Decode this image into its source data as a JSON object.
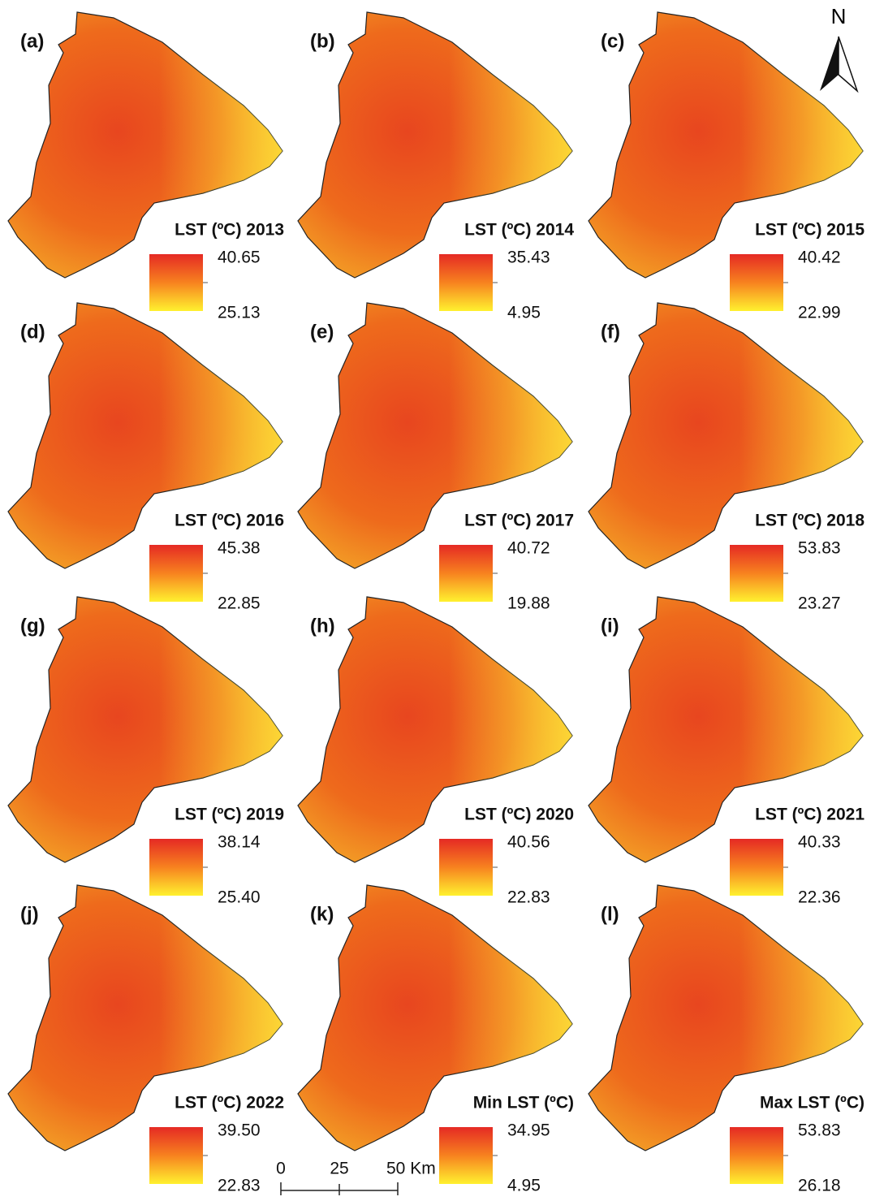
{
  "north": "N",
  "scale_bar": {
    "labels": [
      "0",
      "25",
      "50 Km"
    ]
  },
  "panels": [
    {
      "label": "(a)",
      "legend_title": "LST (ºC) 2013",
      "max": "40.65",
      "min": "25.13"
    },
    {
      "label": "(b)",
      "legend_title": "LST (ºC) 2014",
      "max": "35.43",
      "min": "4.95"
    },
    {
      "label": "(c)",
      "legend_title": "LST (ºC) 2015",
      "max": "40.42",
      "min": "22.99"
    },
    {
      "label": "(d)",
      "legend_title": "LST (ºC) 2016",
      "max": "45.38",
      "min": "22.85"
    },
    {
      "label": "(e)",
      "legend_title": "LST (ºC) 2017",
      "max": "40.72",
      "min": "19.88"
    },
    {
      "label": "(f)",
      "legend_title": "LST (ºC) 2018",
      "max": "53.83",
      "min": "23.27"
    },
    {
      "label": "(g)",
      "legend_title": "LST (ºC) 2019",
      "max": "38.14",
      "min": "25.40"
    },
    {
      "label": "(h)",
      "legend_title": "LST (ºC) 2020",
      "max": "40.56",
      "min": "22.83"
    },
    {
      "label": "(i)",
      "legend_title": "LST (ºC) 2021",
      "max": "40.33",
      "min": "22.36"
    },
    {
      "label": "(j)",
      "legend_title": "LST (ºC) 2022",
      "max": "39.50",
      "min": "22.83"
    },
    {
      "label": "(k)",
      "legend_title": "Min LST (ºC)",
      "max": "34.95",
      "min": "4.95"
    },
    {
      "label": "(l)",
      "legend_title": "Max LST (ºC)",
      "max": "53.83",
      "min": "26.18"
    }
  ]
}
